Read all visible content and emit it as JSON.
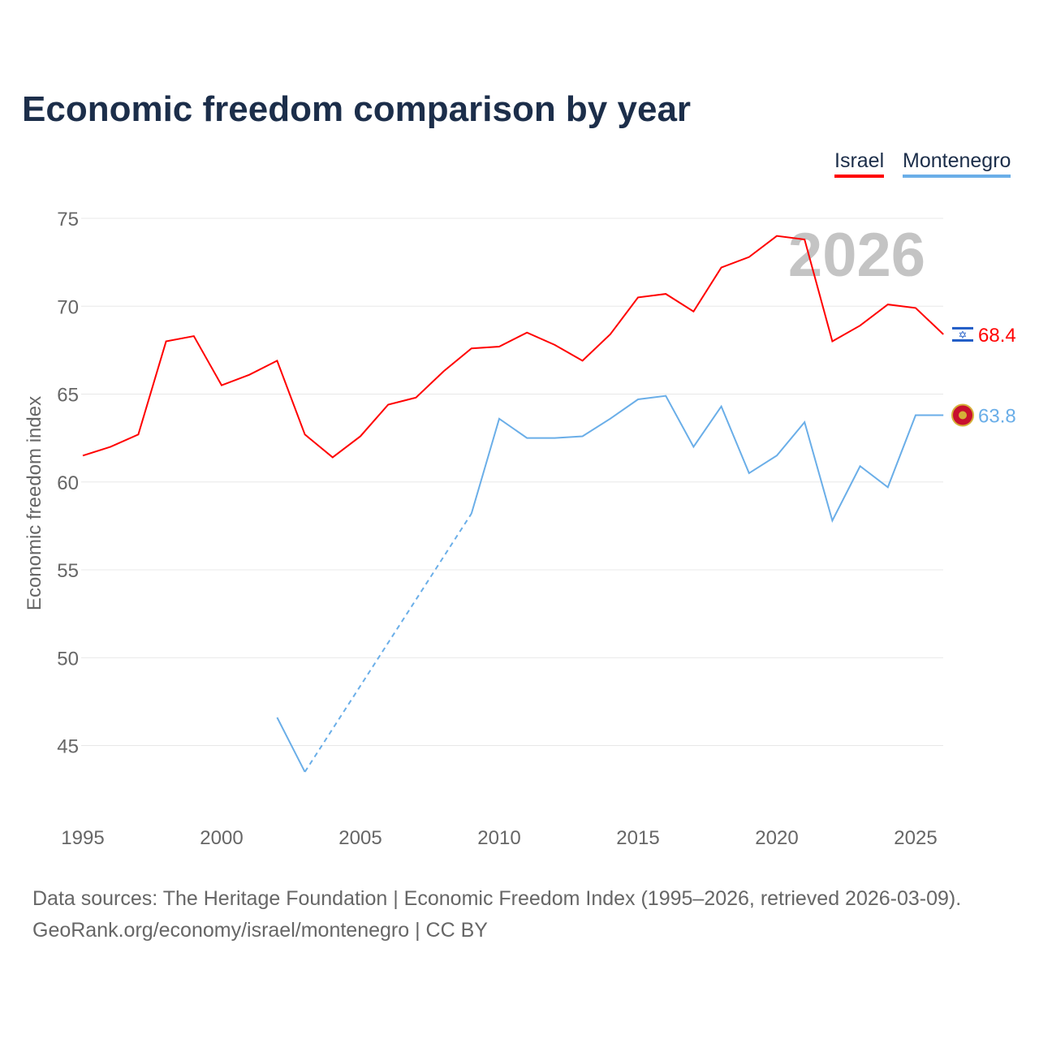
{
  "chart_data": {
    "type": "line",
    "title": "Economic freedom comparison by year",
    "ylabel": "Economic freedom index",
    "xlabel": "",
    "ylim": [
      41,
      76
    ],
    "xlim": [
      1995,
      2026
    ],
    "yticks": [
      45,
      50,
      55,
      60,
      65,
      70,
      75
    ],
    "xticks": [
      1995,
      2000,
      2005,
      2010,
      2015,
      2020,
      2025
    ],
    "year_label": "2026",
    "legend_position": "top-right",
    "x": [
      1995,
      1996,
      1997,
      1998,
      1999,
      2000,
      2001,
      2002,
      2003,
      2004,
      2005,
      2006,
      2007,
      2008,
      2009,
      2010,
      2011,
      2012,
      2013,
      2014,
      2015,
      2016,
      2017,
      2018,
      2019,
      2020,
      2021,
      2022,
      2023,
      2024,
      2025,
      2026
    ],
    "series": [
      {
        "name": "Israel",
        "color": "#ff0000",
        "end_label": "68.4",
        "values": [
          61.5,
          62.0,
          62.7,
          68.0,
          68.3,
          65.5,
          66.1,
          66.9,
          62.7,
          61.4,
          62.6,
          64.4,
          64.8,
          66.3,
          67.6,
          67.7,
          68.5,
          67.8,
          66.9,
          68.4,
          70.5,
          70.7,
          69.7,
          72.2,
          72.8,
          74.0,
          73.8,
          68.0,
          68.9,
          70.1,
          69.9,
          68.4
        ]
      },
      {
        "name": "Montenegro",
        "color": "#6aaee8",
        "end_label": "63.8",
        "values": [
          null,
          null,
          null,
          null,
          null,
          null,
          null,
          46.6,
          43.5,
          null,
          null,
          null,
          null,
          null,
          58.2,
          63.6,
          62.5,
          62.5,
          62.6,
          63.6,
          64.7,
          64.9,
          62.0,
          64.3,
          60.5,
          61.5,
          63.4,
          57.8,
          60.9,
          59.7,
          63.8,
          63.8
        ]
      }
    ]
  },
  "footer": {
    "line1": "Data sources: The Heritage Foundation | Economic Freedom Index (1995–2026, retrieved 2026-03-09).",
    "line2": "GeoRank.org/economy/israel/montenegro | CC BY"
  }
}
